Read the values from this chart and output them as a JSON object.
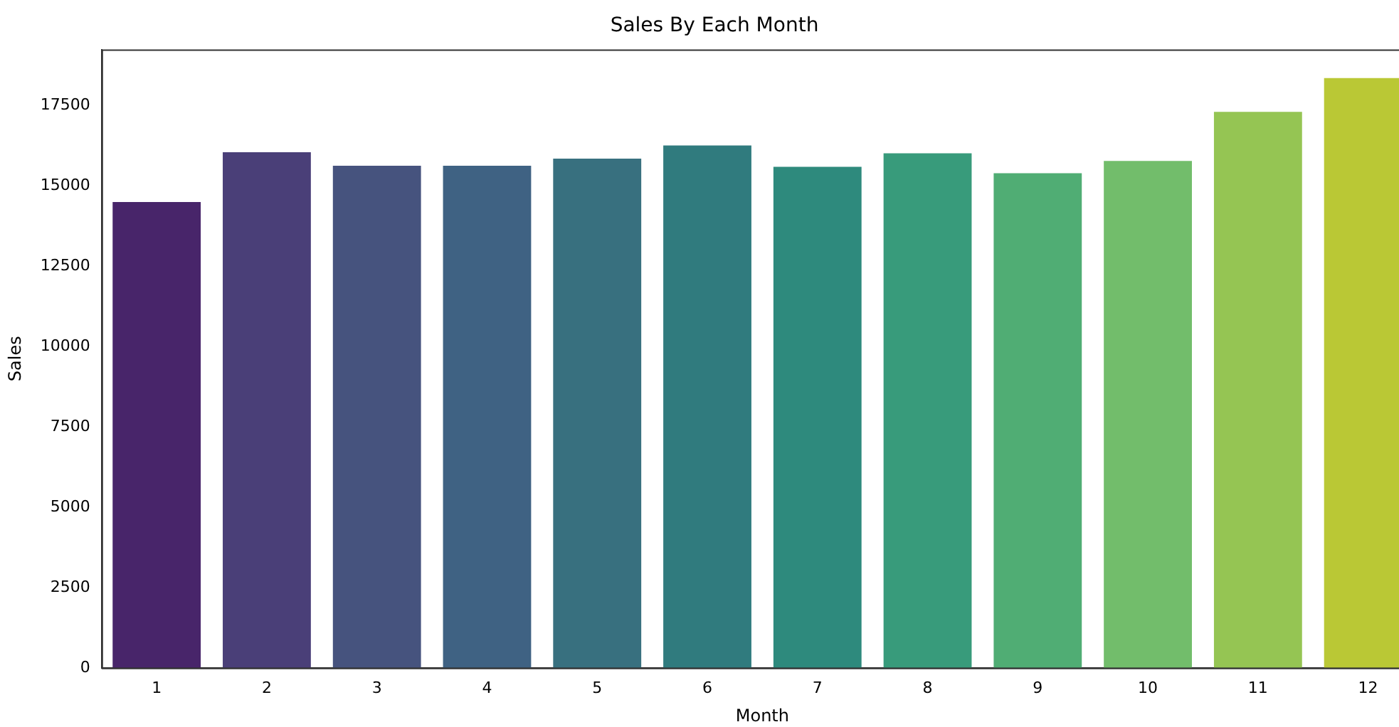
{
  "chart_data": {
    "type": "bar",
    "title": "Sales By Each Month",
    "xlabel": "Month",
    "ylabel": "Sales",
    "categories": [
      "1",
      "2",
      "3",
      "4",
      "5",
      "6",
      "7",
      "8",
      "9",
      "10",
      "11",
      "12"
    ],
    "values": [
      14500,
      16050,
      15630,
      15630,
      15850,
      16260,
      15600,
      16020,
      15400,
      15780,
      17310,
      18360
    ],
    "colors": [
      "#48256a",
      "#4a3f78",
      "#46537e",
      "#3f6283",
      "#38707f",
      "#307b7e",
      "#2e8a7d",
      "#389b7b",
      "#50ad74",
      "#72bd6b",
      "#95c553",
      "#bac835"
    ],
    "ylim": [
      0,
      19250
    ],
    "yticks": [
      0,
      2500,
      5000,
      7500,
      10000,
      12500,
      15000,
      17500
    ],
    "grid": false,
    "legend": false
  }
}
